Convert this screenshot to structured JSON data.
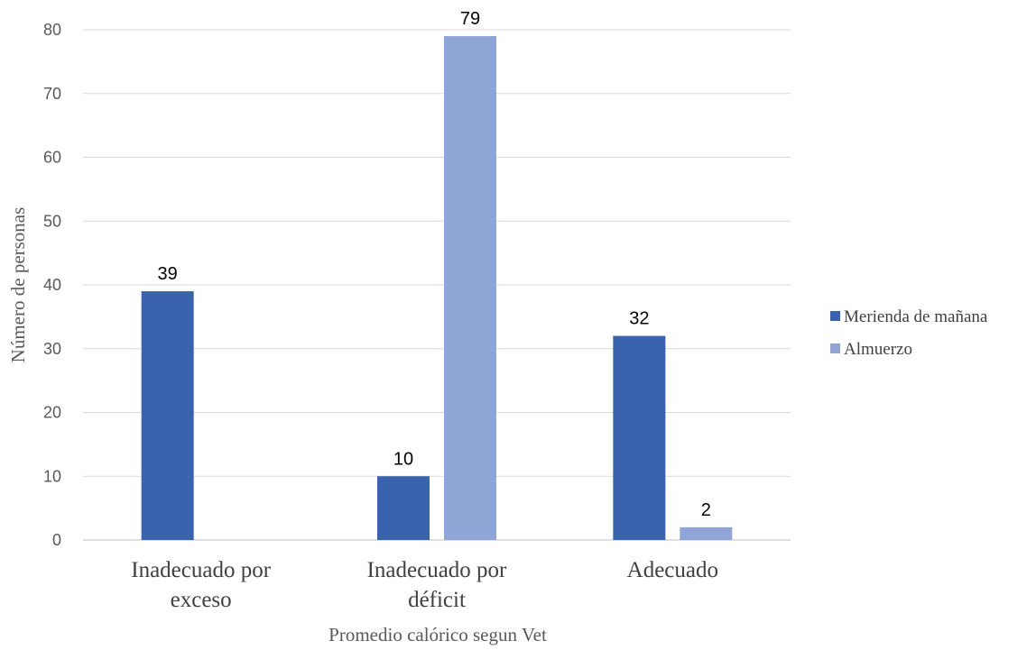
{
  "chart_data": {
    "type": "bar",
    "title": "",
    "xlabel": "Promedio calórico segun Vet",
    "ylabel": "Número de personas",
    "ylim": [
      0,
      80
    ],
    "yticks": [
      0,
      10,
      20,
      30,
      40,
      50,
      60,
      70,
      80
    ],
    "grid": true,
    "legend_position": "right",
    "categories": [
      [
        "Inadecuado por",
        "exceso"
      ],
      [
        "Inadecuado por",
        "déficit"
      ],
      [
        "Adecuado"
      ]
    ],
    "series": [
      {
        "name": "Merienda de mañana",
        "color": "#3a62ad",
        "values": [
          39,
          10,
          32
        ],
        "labels": [
          "39",
          "10",
          "32"
        ]
      },
      {
        "name": "Almuerzo",
        "color": "#8fa5d5",
        "values": [
          0,
          79,
          2
        ],
        "labels": [
          "",
          "79",
          "2"
        ]
      }
    ]
  }
}
